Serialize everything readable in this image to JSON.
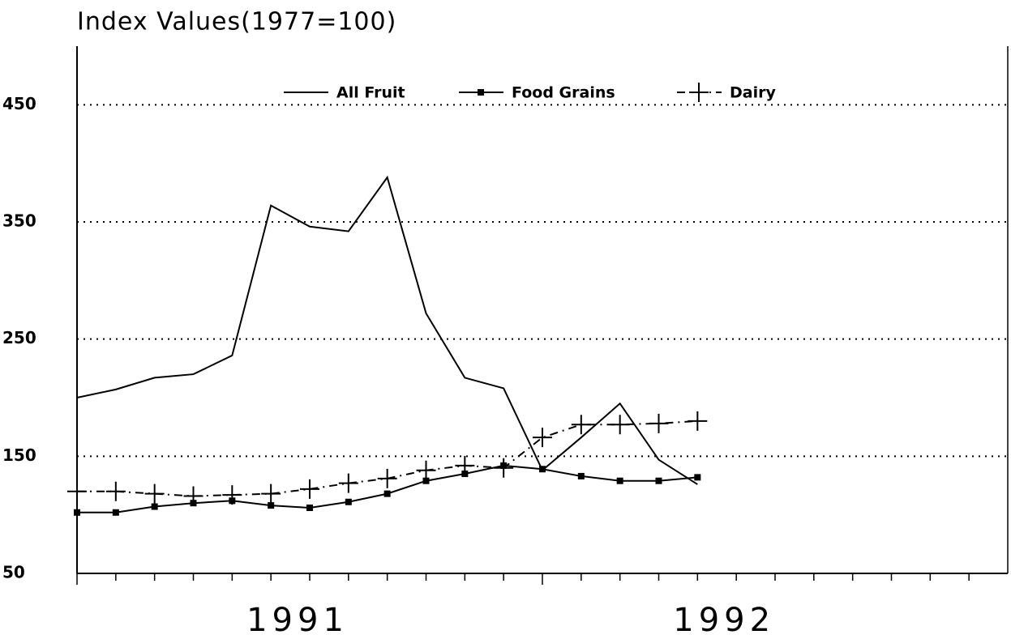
{
  "chart_data": {
    "type": "line",
    "title": "Index Values(1977=100)",
    "categories": [
      null,
      null,
      null,
      null,
      null,
      null,
      "1991",
      null,
      null,
      null,
      null,
      null,
      null,
      null,
      null,
      null,
      null,
      "1992",
      null,
      null,
      null,
      null,
      null,
      null
    ],
    "series": [
      {
        "name": "All Fruit",
        "color": "#000000",
        "marker": "none",
        "dash": "solid",
        "values": [
          200,
          207,
          217,
          220,
          236,
          364,
          346,
          342,
          388,
          272,
          217,
          208,
          138,
          166,
          195,
          147,
          126,
          null,
          null,
          null,
          null,
          null,
          null,
          null
        ]
      },
      {
        "name": "Food Grains",
        "color": "#000000",
        "marker": "square",
        "dash": "solid",
        "values": [
          102,
          102,
          107,
          110,
          112,
          108,
          106,
          111,
          118,
          129,
          135,
          142,
          139,
          133,
          129,
          129,
          132,
          null,
          null,
          null,
          null,
          null,
          null,
          null
        ]
      },
      {
        "name": "Dairy",
        "color": "#000000",
        "marker": "plus",
        "dash": "dashdot",
        "values": [
          120,
          120,
          118,
          116,
          117,
          118,
          122,
          127,
          131,
          138,
          142,
          140,
          166,
          177,
          177,
          178,
          180,
          null,
          null,
          null,
          null,
          null,
          null,
          null
        ]
      }
    ],
    "ylim": [
      50,
      500
    ],
    "yticks": [
      50,
      150,
      250,
      350,
      450
    ],
    "grid": true,
    "legend": "top"
  }
}
